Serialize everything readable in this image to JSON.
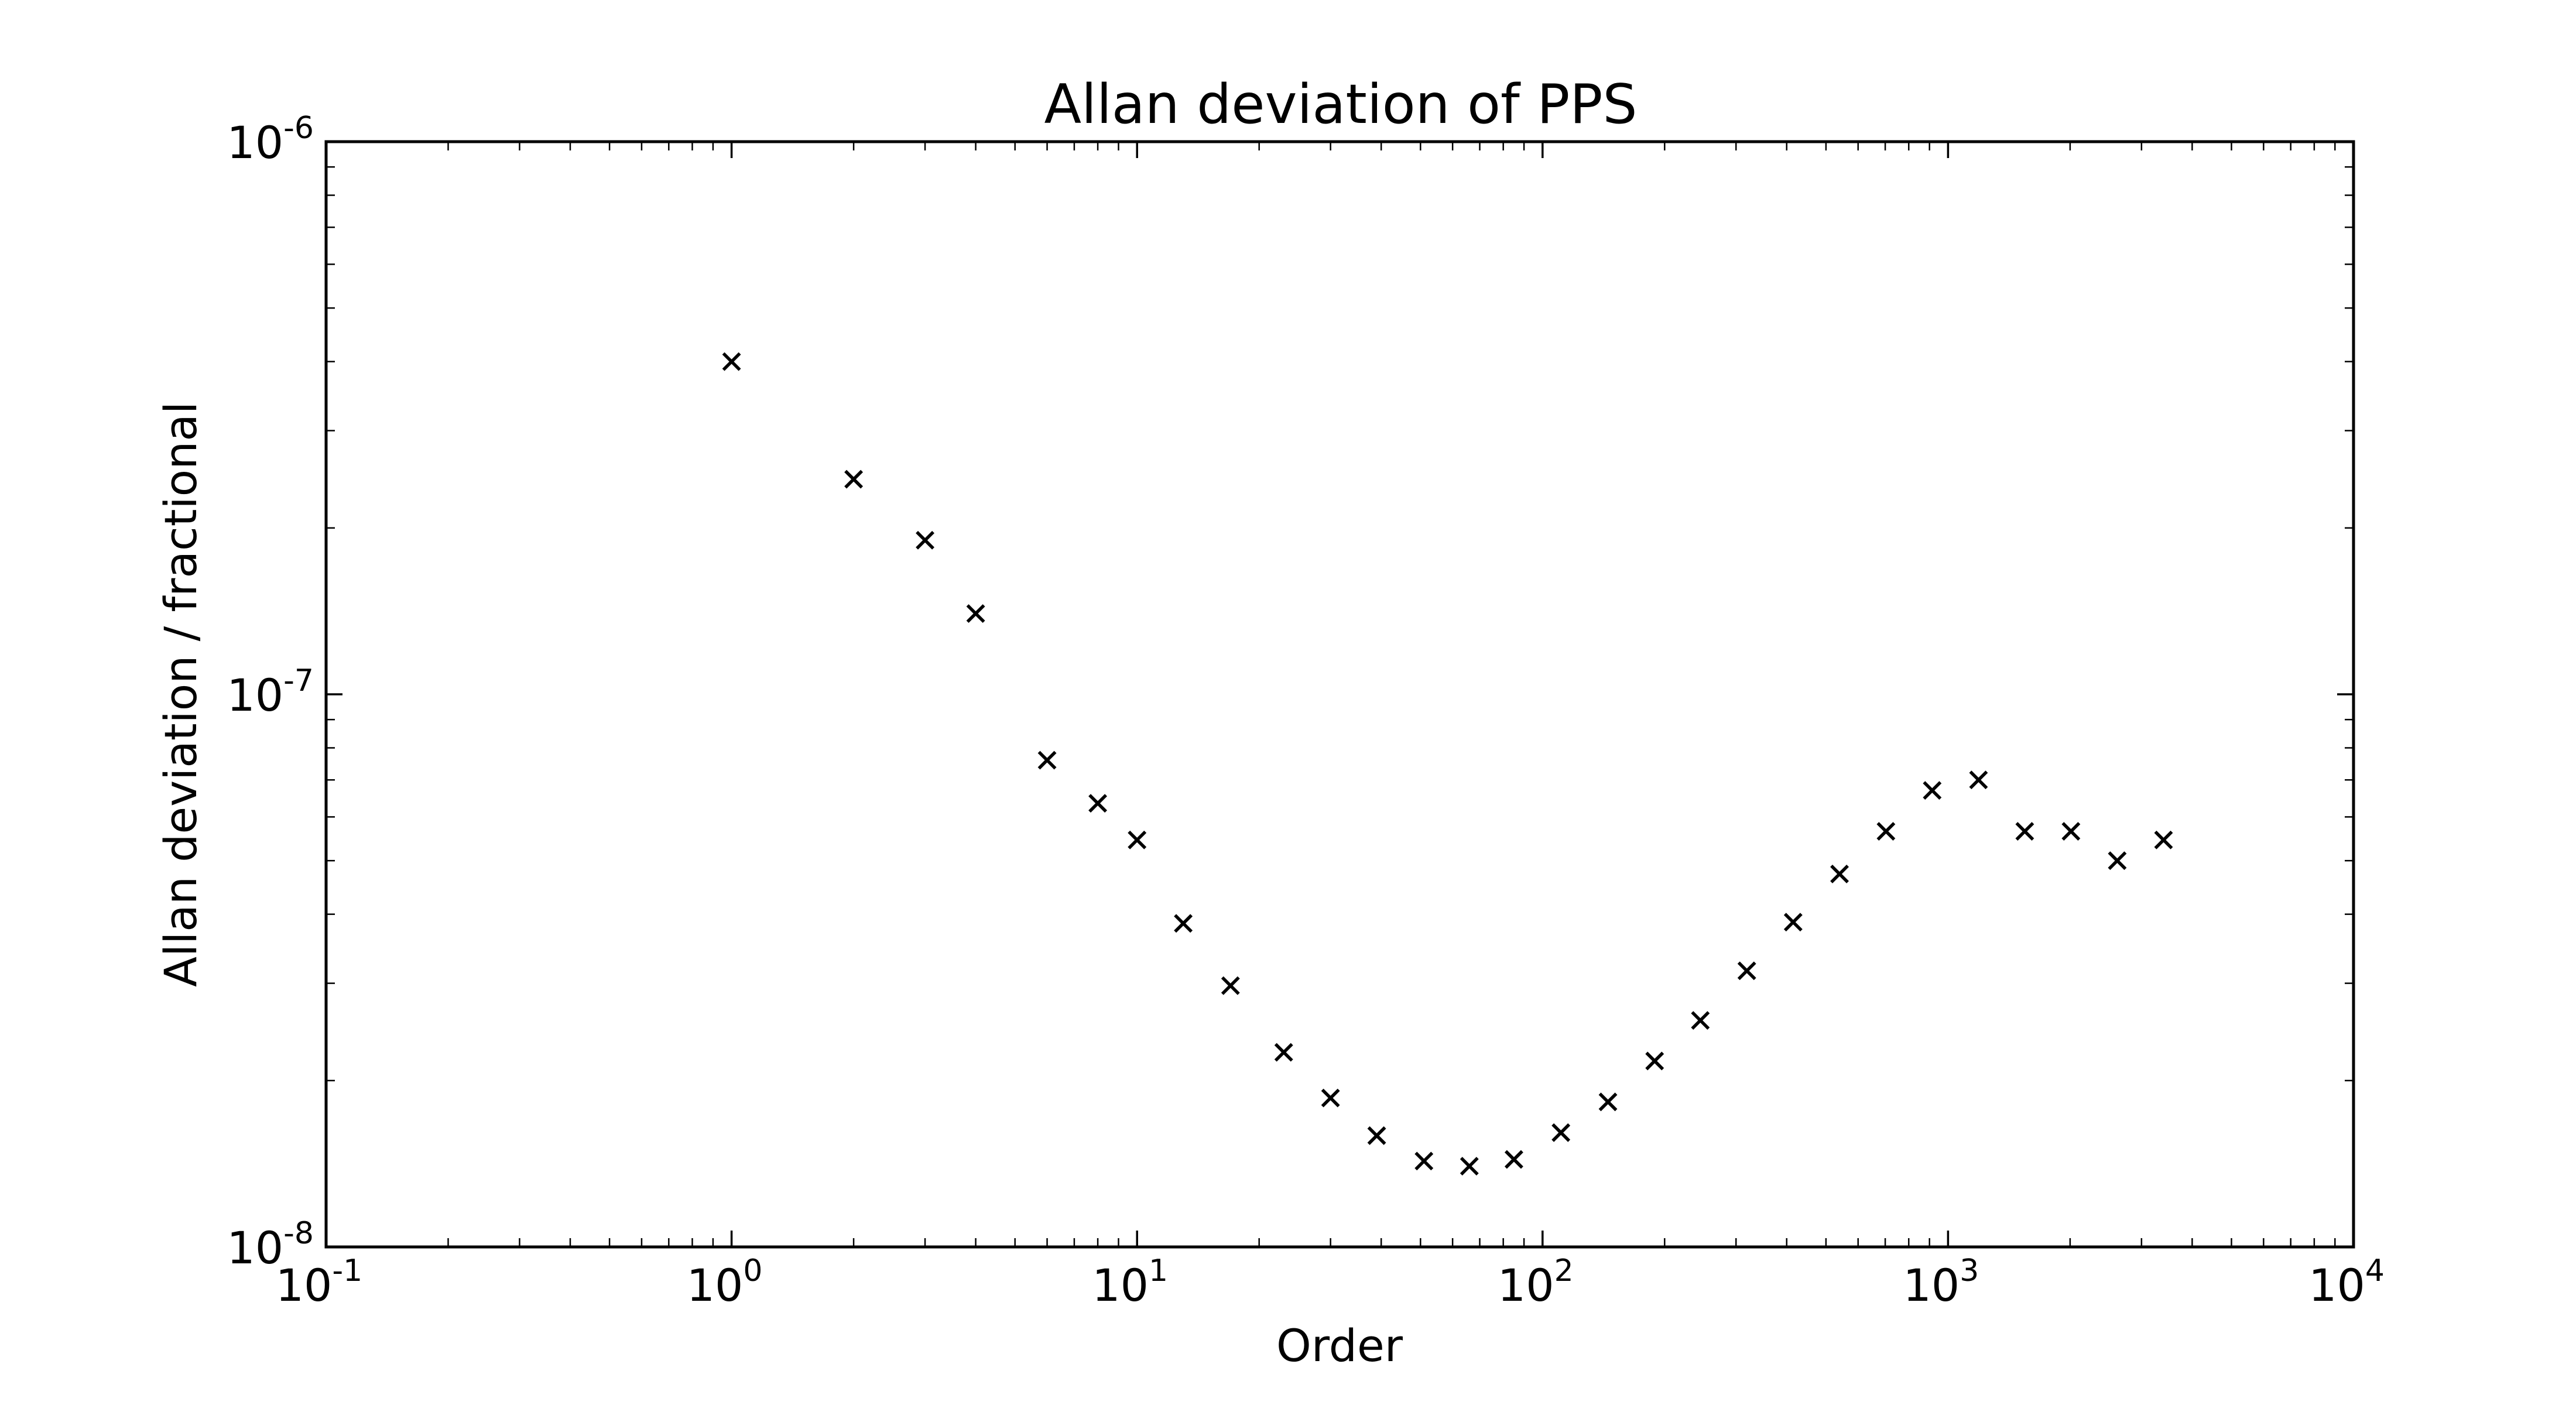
{
  "chart_data": {
    "type": "scatter",
    "title": "Allan deviation of PPS",
    "xlabel": "Order",
    "ylabel": "Allan deviation / fractional",
    "xscale": "log",
    "yscale": "log",
    "xlim": [
      0.1,
      10000
    ],
    "ylim": [
      1e-08,
      1e-06
    ],
    "x_ticks": [
      {
        "base": "10",
        "exp": "-1"
      },
      {
        "base": "10",
        "exp": "0"
      },
      {
        "base": "10",
        "exp": "1"
      },
      {
        "base": "10",
        "exp": "2"
      },
      {
        "base": "10",
        "exp": "3"
      },
      {
        "base": "10",
        "exp": "4"
      }
    ],
    "y_ticks": [
      {
        "base": "10",
        "exp": "-8"
      },
      {
        "base": "10",
        "exp": "-7"
      },
      {
        "base": "10",
        "exp": "-6"
      }
    ],
    "marker": "x",
    "grid": false,
    "legend": "none",
    "series": [
      {
        "x": [
          1,
          2,
          3,
          4,
          6,
          8,
          10,
          13,
          17,
          23,
          30,
          39,
          51,
          66,
          85,
          111,
          145,
          189,
          245,
          319,
          415,
          540,
          703,
          914,
          1189,
          1546,
          2010,
          2614,
          3400
        ],
        "y": [
          4e-07,
          2.45e-07,
          1.9e-07,
          1.4e-07,
          7.6e-08,
          6.35e-08,
          5.45e-08,
          3.85e-08,
          2.97e-08,
          2.25e-08,
          1.86e-08,
          1.59e-08,
          1.43e-08,
          1.4e-08,
          1.44e-08,
          1.61e-08,
          1.83e-08,
          2.17e-08,
          2.57e-08,
          3.16e-08,
          3.87e-08,
          4.73e-08,
          5.65e-08,
          6.7e-08,
          7e-08,
          5.65e-08,
          5.65e-08,
          5e-08,
          5.45e-08
        ]
      }
    ]
  }
}
